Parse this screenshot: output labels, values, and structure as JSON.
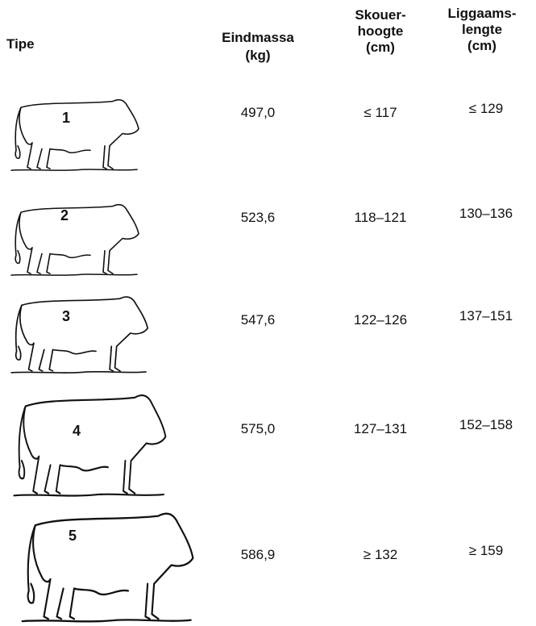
{
  "header": {
    "columns": [
      [
        "Tipe"
      ],
      [
        "Eindmassa",
        "(kg)"
      ],
      [
        "Skouer-",
        "hoogte",
        "(cm)"
      ],
      [
        "Liggaams-",
        "lengte",
        "(cm)"
      ]
    ]
  },
  "rows": [
    {
      "type": "1",
      "mass": "497,0",
      "height": "≤ 117",
      "length": "≤ 129"
    },
    {
      "type": "2",
      "mass": "523,6",
      "height": "118–121",
      "length": "130–136"
    },
    {
      "type": "3",
      "mass": "547,6",
      "height": "122–126",
      "length": "137–151"
    },
    {
      "type": "4",
      "mass": "575,0",
      "height": "127–131",
      "length": "152–158"
    },
    {
      "type": "5",
      "mass": "586,9",
      "height": "≥ 132",
      "length": "≥ 159"
    }
  ]
}
